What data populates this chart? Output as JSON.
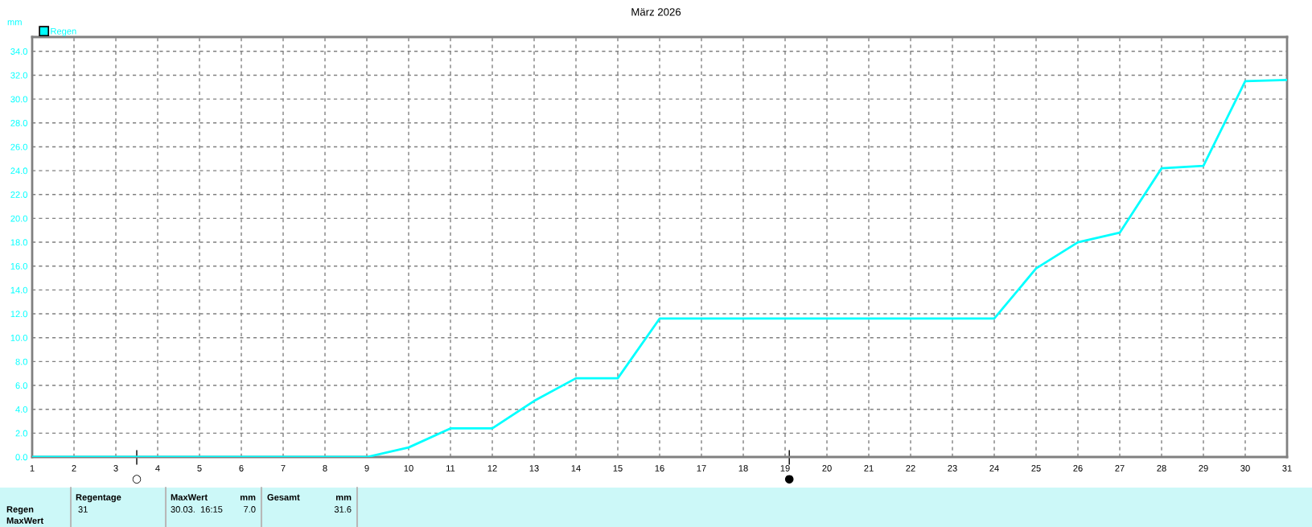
{
  "chart_data": {
    "type": "line",
    "title": "März 2026",
    "ylabel": "mm",
    "x": [
      1,
      2,
      3,
      4,
      5,
      6,
      7,
      8,
      9,
      10,
      11,
      12,
      13,
      14,
      15,
      16,
      17,
      18,
      19,
      20,
      21,
      22,
      23,
      24,
      25,
      26,
      27,
      28,
      29,
      30,
      31
    ],
    "series": [
      {
        "name": "Regen",
        "color": "#00ffff",
        "values": [
          0,
          0,
          0,
          0,
          0,
          0,
          0,
          0,
          0,
          0.8,
          2.4,
          2.4,
          4.7,
          6.6,
          6.6,
          11.6,
          11.6,
          11.6,
          11.6,
          11.6,
          11.6,
          11.6,
          11.6,
          11.6,
          15.8,
          18.0,
          18.8,
          24.2,
          24.4,
          31.5,
          31.6
        ]
      }
    ],
    "xlim": [
      1,
      31
    ],
    "xticks": [
      1,
      2,
      3,
      4,
      5,
      6,
      7,
      8,
      9,
      10,
      11,
      12,
      13,
      14,
      15,
      16,
      17,
      18,
      19,
      20,
      21,
      22,
      23,
      24,
      25,
      26,
      27,
      28,
      29,
      30,
      31
    ],
    "ylim": [
      0,
      35.2
    ],
    "yticks": [
      {
        "value": 0,
        "label": "0.0"
      },
      {
        "value": 2,
        "label": "2.0"
      },
      {
        "value": 4,
        "label": "4.0"
      },
      {
        "value": 6,
        "label": "6.0"
      },
      {
        "value": 8,
        "label": "8.0"
      },
      {
        "value": 10,
        "label": "10.0"
      },
      {
        "value": 12,
        "label": "12.0"
      },
      {
        "value": 14,
        "label": "14.0"
      },
      {
        "value": 16,
        "label": "16.0"
      },
      {
        "value": 18,
        "label": "18.0"
      },
      {
        "value": 20,
        "label": "20.0"
      },
      {
        "value": 22,
        "label": "22.0"
      },
      {
        "value": 24,
        "label": "24.0"
      },
      {
        "value": 26,
        "label": "26.0"
      },
      {
        "value": 28,
        "label": "28.0"
      },
      {
        "value": 30,
        "label": "30.0"
      },
      {
        "value": 32,
        "label": "32.0"
      },
      {
        "value": 34,
        "label": "34.0"
      }
    ],
    "grid": true,
    "legend": "top left",
    "line_style": "solid",
    "ref_lines": [
      {
        "axis": "x",
        "value": 3.5,
        "label": "○"
      },
      {
        "axis": "x",
        "value": 19.1,
        "label": "●"
      }
    ],
    "annotations": [
      "Regentage",
      "31",
      "MaxWert",
      "mm",
      "30.03.  16:15",
      "7.0",
      "Gesamt",
      "mm",
      "31.6",
      "Regen",
      "MaxWert"
    ]
  }
}
